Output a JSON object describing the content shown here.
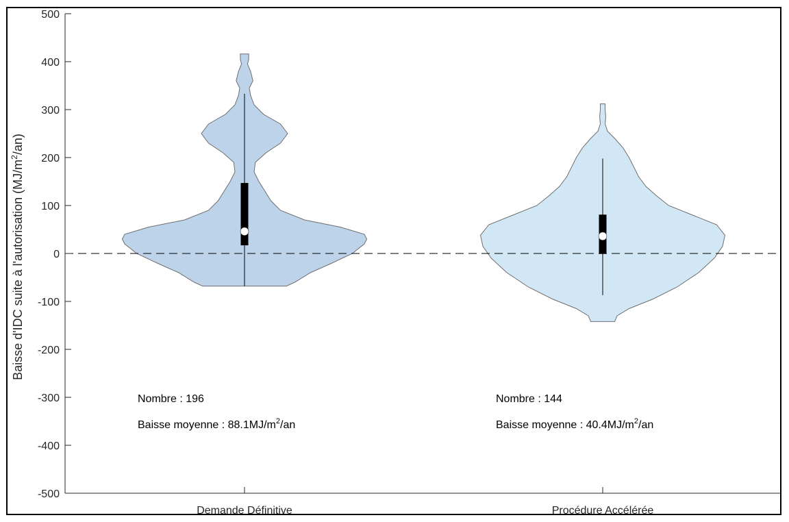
{
  "chart_data": {
    "type": "violin",
    "ylabel": "Baisse d'IDC suite à l'autorisation (MJ/m",
    "ylabel_sup": "2",
    "ylabel_tail": "/an)",
    "ylim": [
      -500,
      500
    ],
    "yticks": [
      500,
      400,
      300,
      200,
      100,
      0,
      -100,
      -200,
      -300,
      -400,
      -500
    ],
    "categories": [
      "Demande Définitive",
      "Procédure Accélérée"
    ],
    "reference_line": {
      "y": 0,
      "style": "dashed"
    },
    "series": [
      {
        "category": "Demande Définitive",
        "color": "#bcd3ea",
        "median": 46,
        "q1": 17,
        "q3": 147,
        "whisker_low": -68,
        "whisker_high": 333,
        "min": -68,
        "max": 416,
        "density": [
          [
            -68,
            0.35
          ],
          [
            -60,
            0.42
          ],
          [
            -40,
            0.55
          ],
          [
            -20,
            0.73
          ],
          [
            0,
            0.9
          ],
          [
            20,
            1.0
          ],
          [
            30,
            1.02
          ],
          [
            40,
            1.0
          ],
          [
            55,
            0.8
          ],
          [
            70,
            0.5
          ],
          [
            90,
            0.3
          ],
          [
            110,
            0.22
          ],
          [
            130,
            0.17
          ],
          [
            150,
            0.12
          ],
          [
            170,
            0.08
          ],
          [
            190,
            0.09
          ],
          [
            210,
            0.18
          ],
          [
            230,
            0.3
          ],
          [
            250,
            0.36
          ],
          [
            270,
            0.3
          ],
          [
            290,
            0.16
          ],
          [
            310,
            0.08
          ],
          [
            330,
            0.05
          ],
          [
            345,
            0.04
          ],
          [
            360,
            0.07
          ],
          [
            380,
            0.05
          ],
          [
            395,
            0.025
          ],
          [
            405,
            0.035
          ],
          [
            416,
            0.035
          ]
        ]
      },
      {
        "category": "Procédure Accélérée",
        "color": "#d2e7f5",
        "median": 36,
        "q1": -1,
        "q3": 81,
        "whisker_low": -87,
        "whisker_high": 198,
        "min": -142,
        "max": 312,
        "density": [
          [
            -142,
            0.1
          ],
          [
            -130,
            0.12
          ],
          [
            -115,
            0.22
          ],
          [
            -95,
            0.42
          ],
          [
            -70,
            0.62
          ],
          [
            -40,
            0.8
          ],
          [
            -10,
            0.93
          ],
          [
            15,
            1.0
          ],
          [
            38,
            1.02
          ],
          [
            60,
            0.95
          ],
          [
            80,
            0.75
          ],
          [
            100,
            0.55
          ],
          [
            120,
            0.45
          ],
          [
            140,
            0.36
          ],
          [
            160,
            0.3
          ],
          [
            180,
            0.26
          ],
          [
            200,
            0.22
          ],
          [
            220,
            0.17
          ],
          [
            240,
            0.1
          ],
          [
            255,
            0.04
          ],
          [
            270,
            0.02
          ],
          [
            285,
            0.025
          ],
          [
            300,
            0.02
          ],
          [
            312,
            0.02
          ]
        ]
      }
    ],
    "annotations": [
      {
        "category": "Demande Définitive",
        "count_text": "Nombre : 196",
        "mean_prefix": "Baisse moyenne : 88.1MJ/m",
        "mean_sup": "2",
        "mean_suffix": "/an"
      },
      {
        "category": "Procédure Accélérée",
        "count_text": "Nombre : 144",
        "mean_prefix": "Baisse moyenne : 40.4MJ/m",
        "mean_sup": "2",
        "mean_suffix": "/an"
      }
    ]
  }
}
